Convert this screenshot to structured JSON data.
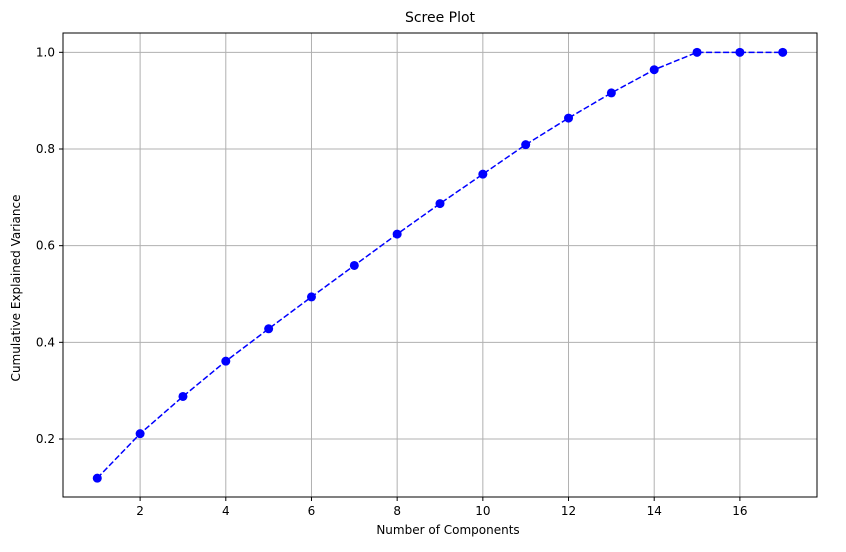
{
  "chart_data": {
    "type": "line",
    "title": "Scree Plot",
    "xlabel": "Number of Components",
    "ylabel": "Cumulative Explained Variance",
    "x": [
      1,
      2,
      3,
      4,
      5,
      6,
      7,
      8,
      9,
      10,
      11,
      12,
      13,
      14,
      15,
      16,
      17
    ],
    "series": [
      {
        "values": [
          0.119,
          0.211,
          0.288,
          0.361,
          0.428,
          0.494,
          0.559,
          0.624,
          0.687,
          0.748,
          0.809,
          0.864,
          0.916,
          0.964,
          1.0,
          1.0,
          1.0
        ],
        "color": "#0000ff",
        "line_style": "dashed",
        "marker": "circle"
      }
    ],
    "xlim": [
      0.2,
      17.8
    ],
    "ylim": [
      0.08,
      1.04
    ],
    "xticks": [
      2,
      4,
      6,
      8,
      10,
      12,
      14,
      16
    ],
    "yticks": [
      0.2,
      0.4,
      0.6,
      0.8,
      1.0
    ],
    "xtick_labels": [
      "2",
      "4",
      "6",
      "8",
      "10",
      "12",
      "14",
      "16"
    ],
    "ytick_labels": [
      "0.2",
      "0.4",
      "0.6",
      "0.8",
      "1.0"
    ],
    "grid": true,
    "grid_color": "#b0b0b0"
  }
}
